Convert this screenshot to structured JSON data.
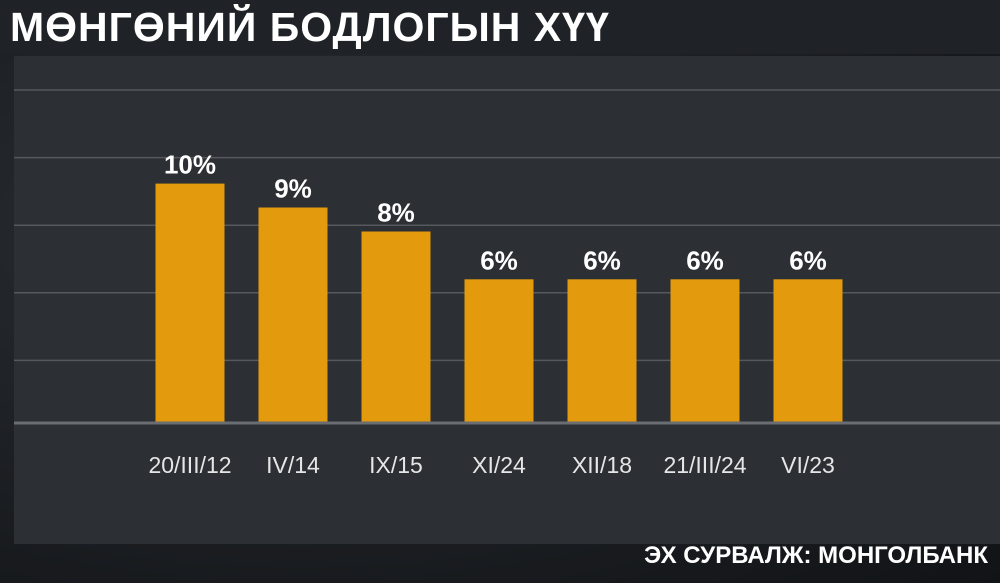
{
  "header": {
    "title": "МӨНГӨНИЙ БОДЛОГЫН ХҮҮ"
  },
  "footer": {
    "source": "ЭХ СУРВАЛЖ: МОНГОЛБАНК"
  },
  "colors": {
    "bar": "#e39a0c",
    "grid": "#55595e",
    "axis": "#6a6e73"
  },
  "chart_data": {
    "type": "bar",
    "title": "МӨНГӨНИЙ БОДЛОГЫН ХҮҮ",
    "categories": [
      "20/III/12",
      "IV/14",
      "IX/15",
      "XI/24",
      "XII/18",
      "21/III/24",
      "VI/23"
    ],
    "values": [
      10,
      9,
      8,
      6,
      6,
      6,
      6
    ],
    "data_labels": [
      "10%",
      "9%",
      "8%",
      "6%",
      "6%",
      "6%",
      "6%"
    ],
    "xlabel": "",
    "ylabel": "",
    "ylim": [
      0,
      12
    ],
    "grid": true
  }
}
